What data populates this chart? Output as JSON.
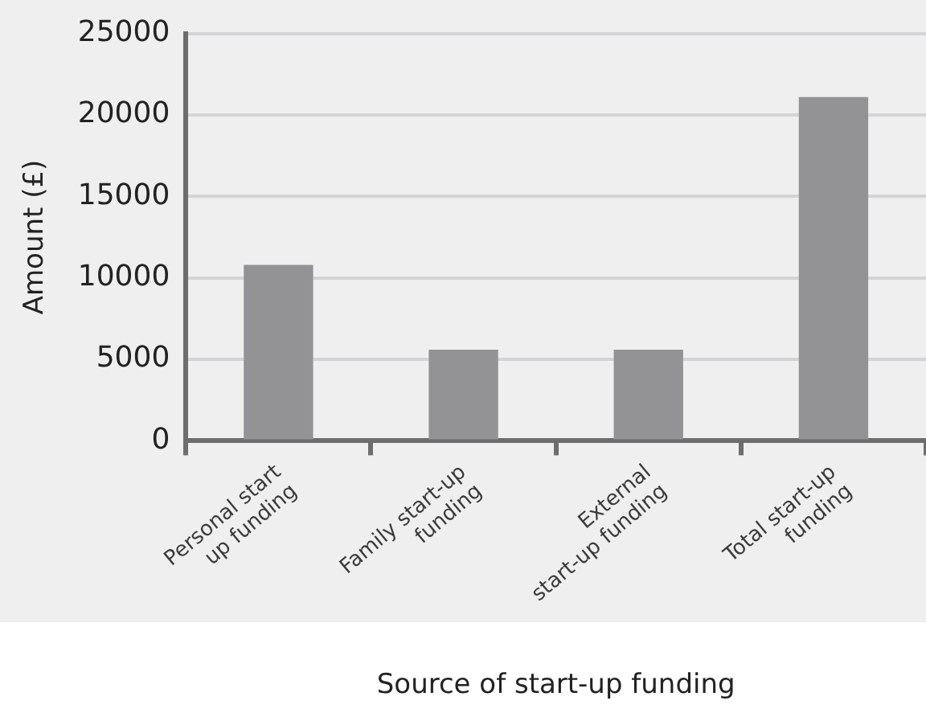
{
  "chart_data": {
    "type": "bar",
    "xlabel": "Source of start-up funding",
    "ylabel": "Amount (£)",
    "categories": [
      "Personal start up funding",
      "Family start-up funding",
      "External start-up funding",
      "Total start-up funding"
    ],
    "values": [
      10800,
      5600,
      5600,
      21100
    ],
    "color": "#939396",
    "ylim": [
      0,
      25000
    ],
    "yticks": [
      0,
      5000,
      10000,
      15000,
      20000,
      25000
    ],
    "grid": "y",
    "legend": false
  }
}
